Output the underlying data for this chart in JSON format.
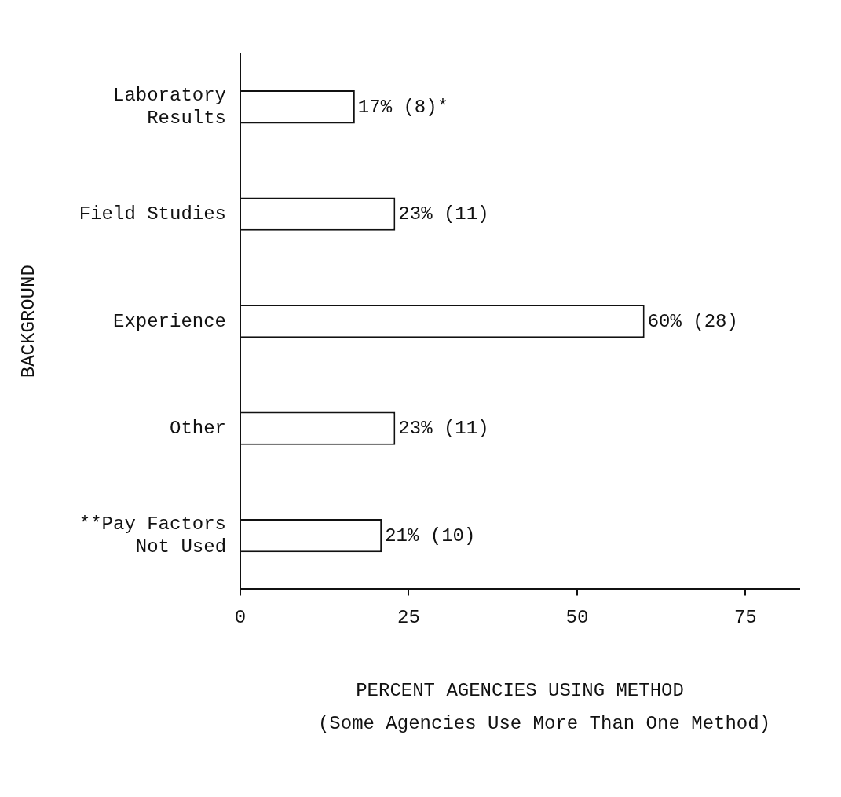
{
  "chart_data": {
    "type": "bar",
    "orientation": "horizontal",
    "categories": [
      "Laboratory Results",
      "Field Studies",
      "Experience",
      "Other",
      "**Pay Factors Not Used"
    ],
    "values": [
      17,
      23,
      60,
      23,
      21
    ],
    "value_labels": [
      "17% (8)*",
      "23% (11)",
      "60% (28)",
      "23% (11)",
      "21% (10)"
    ],
    "color": "#ffffff",
    "xlim": [
      0,
      83
    ],
    "xticks": [
      0,
      25,
      50,
      75
    ],
    "xlabel": "PERCENT AGENCIES USING METHOD",
    "ylabel": "BACKGROUND",
    "annotations": [
      "(Some Agencies Use More Than One Method)"
    ],
    "grid": false,
    "legend": false
  }
}
